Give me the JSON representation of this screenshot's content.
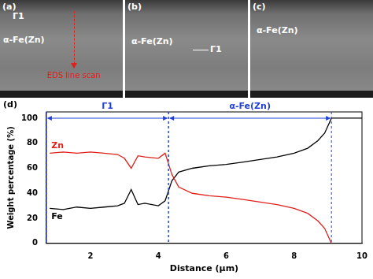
{
  "images": [
    {
      "label": "(a)",
      "texts": [
        "Γ1",
        "α-Fe(Zn)",
        "EDS line scan"
      ]
    },
    {
      "label": "(b)",
      "texts": [
        "Γ1",
        "α-Fe(Zn)"
      ]
    },
    {
      "label": "(c)",
      "texts": [
        "α-Fe(Zn)"
      ]
    }
  ],
  "chart_data": {
    "type": "line",
    "title": "(d)",
    "x_label": "Distance (μm)",
    "y_label": "Weight percentage (%)",
    "x": [
      0.8,
      1.2,
      1.6,
      2.0,
      2.4,
      2.8,
      3.0,
      3.2,
      3.4,
      3.6,
      4.0,
      4.2,
      4.4,
      4.6,
      5.0,
      5.5,
      6.0,
      6.5,
      7.0,
      7.5,
      8.0,
      8.4,
      8.7,
      8.9,
      9.1,
      9.2,
      10.0
    ],
    "series": [
      {
        "name": "Zn",
        "color": "#e0201b",
        "values": [
          72,
          73,
          72,
          73,
          72,
          71,
          68,
          60,
          70,
          69,
          68,
          72,
          55,
          45,
          40,
          38,
          37,
          35,
          33,
          31,
          28,
          24,
          18,
          12,
          0,
          null,
          null
        ]
      },
      {
        "name": "Fe",
        "color": "#000000",
        "values": [
          28,
          27,
          29,
          28,
          29,
          30,
          32,
          43,
          31,
          32,
          30,
          34,
          50,
          57,
          60,
          62,
          63,
          65,
          67,
          69,
          72,
          76,
          82,
          88,
          100,
          100,
          100
        ]
      }
    ],
    "regions": [
      {
        "label": "Γ1",
        "start": 0.7,
        "end": 4.3
      },
      {
        "label": "α-Fe(Zn)",
        "start": 4.3,
        "end": 9.1
      }
    ],
    "region_color": "#1f3fd6",
    "xlim": [
      0.7,
      10
    ],
    "xticks": [
      2,
      4,
      6,
      8,
      10
    ],
    "ylim": [
      0,
      105
    ],
    "yticks": [
      0,
      20,
      40,
      60,
      80,
      100
    ],
    "grid": false,
    "legend": false
  }
}
